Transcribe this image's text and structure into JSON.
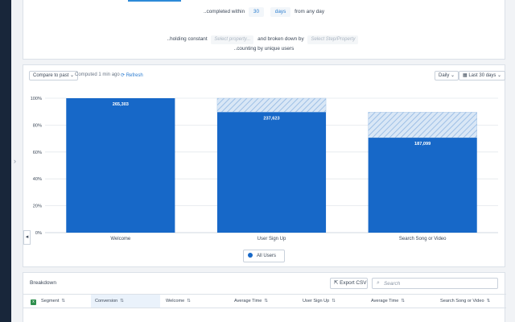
{
  "query": {
    "line1": {
      "text_before": "..completed within",
      "value": "30",
      "unit": "days",
      "text_after": "from any day"
    },
    "line2": {
      "text_before": "..holding constant",
      "property_placeholder": "Select property...",
      "text_middle": "and broken down by",
      "step_placeholder": "Select Step/Property"
    },
    "line3": {
      "text": "..counting by unique users"
    }
  },
  "toolbar": {
    "compare_label": "Compare to past",
    "computed_text": "Computed 1 min ago",
    "refresh_label": "Refresh",
    "interval_label": "Daily",
    "range_label": "Last 30 days"
  },
  "chart_data": {
    "type": "bar",
    "categories": [
      "Welcome",
      "User Sign Up",
      "Search Song or Video"
    ],
    "series": [
      {
        "name": "All Users",
        "values": [
          100,
          89.6,
          70.6
        ],
        "labels": [
          "265,303",
          "237,623",
          "187,099"
        ],
        "color": "#1768c8"
      }
    ],
    "dropoff_top": [
      100,
      100,
      89.6
    ],
    "ylim": [
      0,
      100
    ],
    "yticks": [
      "0%",
      "20%",
      "40%",
      "60%",
      "80%",
      "100%"
    ],
    "grid": true,
    "legend": "bottom"
  },
  "legend": {
    "label": "All Users",
    "color": "#1768c8"
  },
  "breakdown": {
    "title": "Breakdown",
    "export_label": "Export CSV",
    "search_placeholder": "Search",
    "columns": [
      "Segment",
      "Conversion",
      "Welcome",
      "Average Time",
      "User Sign Up",
      "Average Time",
      "Search Song or Video"
    ]
  },
  "icons": {
    "refresh": "refresh-icon",
    "calendar": "calendar-icon",
    "export": "export-icon",
    "search": "search-icon",
    "excel": "excel-icon"
  }
}
